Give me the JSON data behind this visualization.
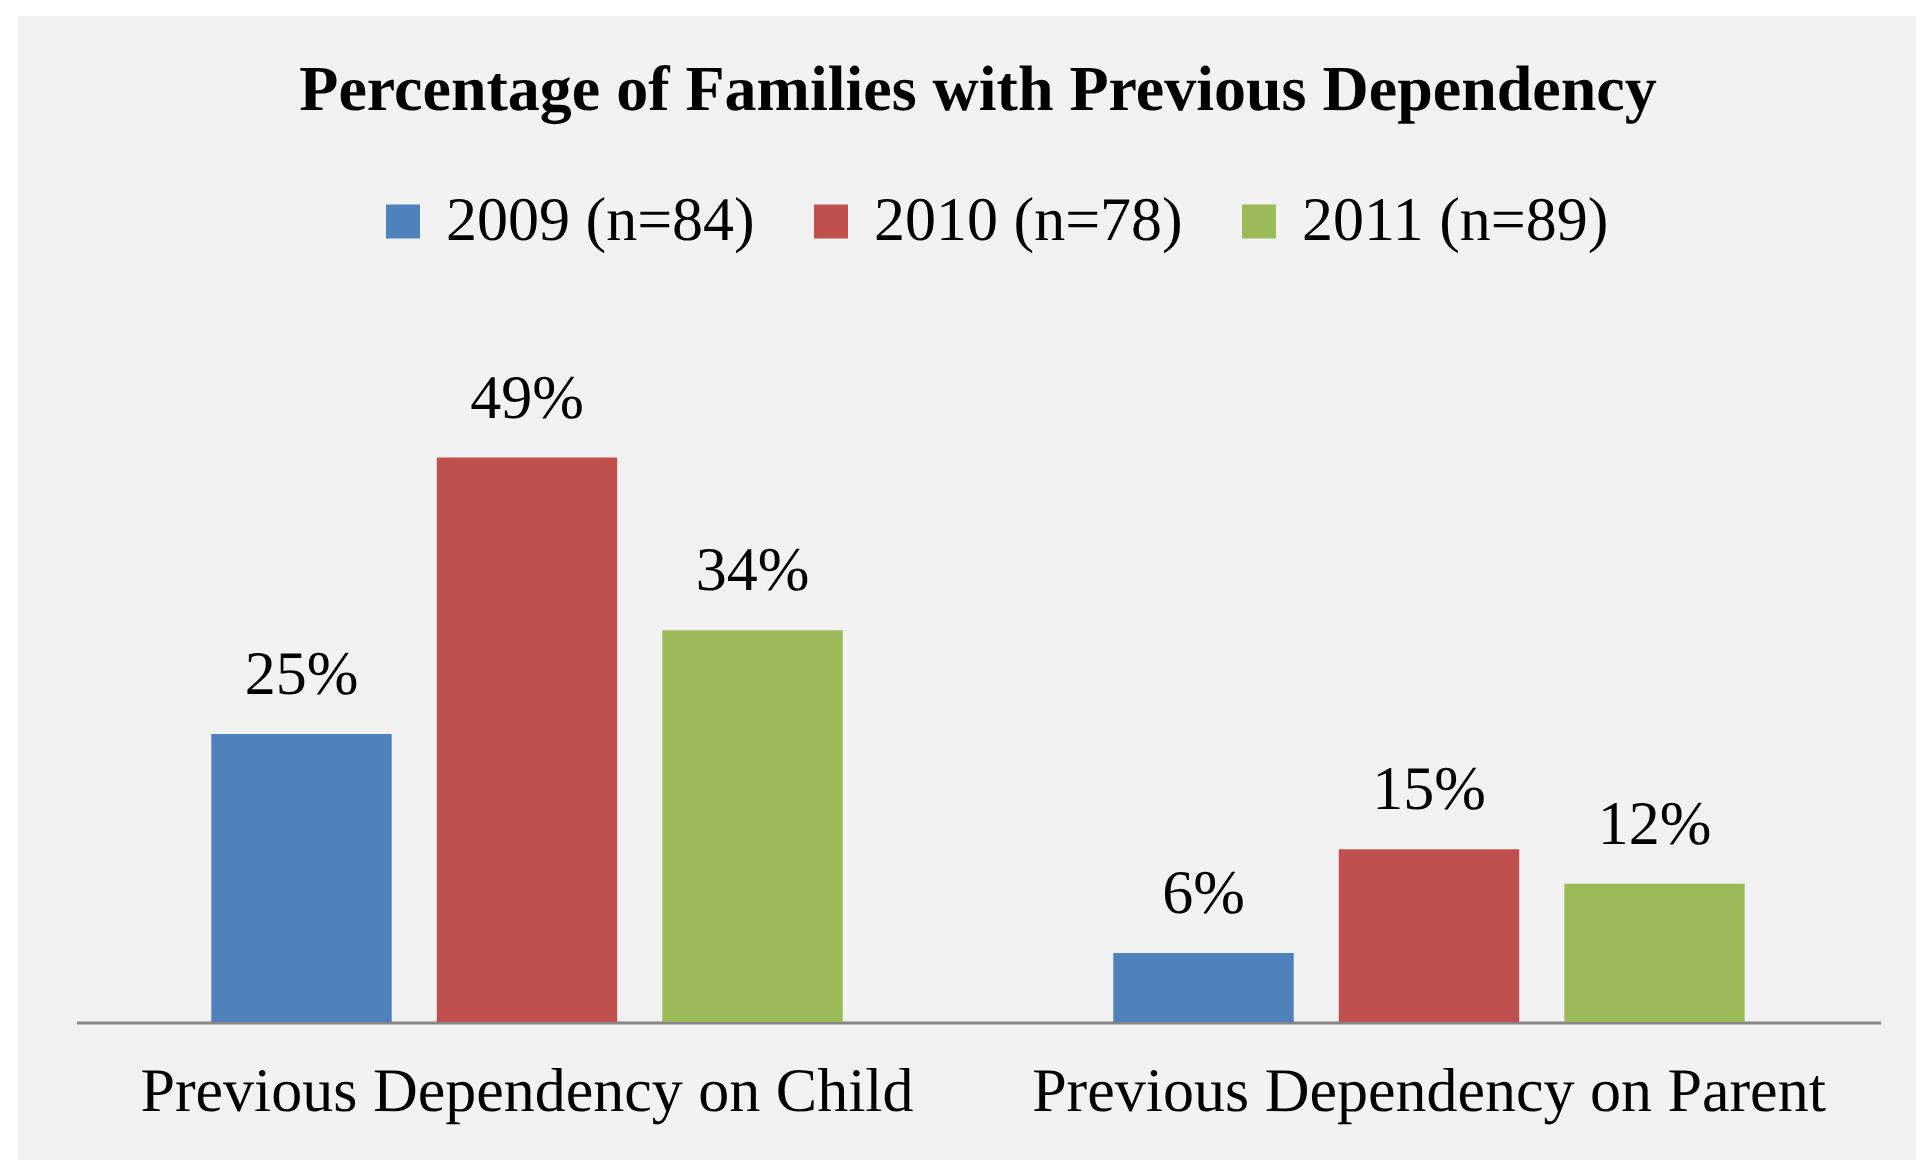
{
  "chart_data": {
    "type": "bar",
    "title": "Percentage of Families with Previous Dependency",
    "categories": [
      "Previous Dependency on Child",
      "Previous Dependency on Parent"
    ],
    "series": [
      {
        "name": "2009 (n=84)",
        "color": "#4f81bd",
        "values": [
          25,
          6
        ],
        "value_labels": [
          "25%",
          "6%"
        ]
      },
      {
        "name": "2010 (n=78)",
        "color": "#c0504d",
        "values": [
          49,
          15
        ],
        "value_labels": [
          "49%",
          "15%"
        ]
      },
      {
        "name": "2011 (n=89)",
        "color": "#9bbb59",
        "values": [
          34,
          12
        ],
        "value_labels": [
          "34%",
          "12%"
        ]
      }
    ],
    "legend": "top"
  }
}
